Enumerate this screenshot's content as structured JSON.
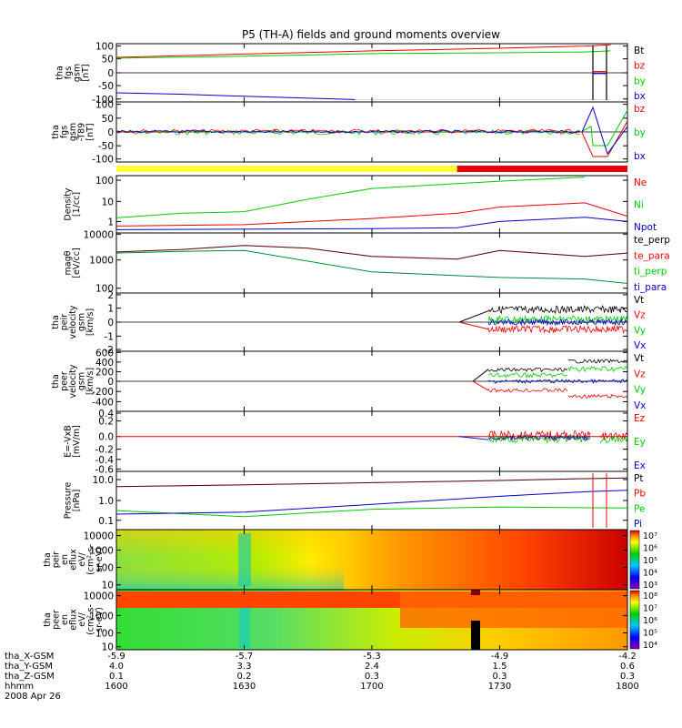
{
  "title": "P5 (TH-A) fields and ground moments overview",
  "colors": {
    "black": "#000000",
    "red": "#ee0000",
    "green": "#00cc00",
    "blue": "#0000cc",
    "mode_slow": "#ffff33",
    "mode_fast": "#ee0000"
  },
  "panels": [
    {
      "id": "fgs",
      "ylabel": [
        "tha",
        "fgs",
        "gsm",
        "[nT]"
      ],
      "yticks": [
        "100",
        "50",
        "0",
        "-50",
        "-100"
      ],
      "legend": [
        {
          "text": "Bt",
          "color": "black"
        },
        {
          "text": "bz",
          "color": "red"
        },
        {
          "text": "by",
          "color": "green"
        },
        {
          "text": "bx",
          "color": "blue"
        }
      ]
    },
    {
      "id": "fgs_hp",
      "ylabel": [
        "tha",
        "fgs",
        "gsm",
        "-T89",
        "[nT]"
      ],
      "yticks": [
        "100",
        "50",
        "0",
        "-50",
        "-100"
      ],
      "legend": [
        {
          "text": "bz",
          "color": "red"
        },
        {
          "text": "by",
          "color": "green"
        },
        {
          "text": "bx",
          "color": "blue"
        }
      ]
    },
    {
      "id": "density",
      "ylabel": [
        "Density",
        "[1/cc]"
      ],
      "yticks": [
        "100",
        "10",
        "1"
      ],
      "legend": [
        {
          "text": "Ne",
          "color": "red"
        },
        {
          "text": "Ni",
          "color": "green"
        },
        {
          "text": "Npot",
          "color": "blue"
        }
      ]
    },
    {
      "id": "temp",
      "ylabel": [
        "magθ",
        "[eV/cc]"
      ],
      "yticks": [
        "10000",
        "1000",
        "100"
      ],
      "legend": [
        {
          "text": "te_perp",
          "color": "black"
        },
        {
          "text": "te_para",
          "color": "red"
        },
        {
          "text": "ti_perp",
          "color": "green"
        },
        {
          "text": "ti_para",
          "color": "blue"
        }
      ]
    },
    {
      "id": "peir_vel",
      "ylabel": [
        "tha",
        "peir",
        "velocity",
        "gsm",
        "[km/s]"
      ],
      "yticks": [
        "2",
        "1",
        "0",
        "-1",
        "-2"
      ],
      "legend": [
        {
          "text": "Vt",
          "color": "black"
        },
        {
          "text": "Vz",
          "color": "red"
        },
        {
          "text": "Vy",
          "color": "green"
        },
        {
          "text": "Vx",
          "color": "blue"
        }
      ]
    },
    {
      "id": "peer_vel",
      "ylabel": [
        "tha",
        "peer",
        "velocity",
        "gsm",
        "[km/s]"
      ],
      "yticks": [
        "600",
        "400",
        "200",
        "0",
        "-200",
        "-400"
      ],
      "legend": [
        {
          "text": "Vt",
          "color": "black"
        },
        {
          "text": "Vz",
          "color": "red"
        },
        {
          "text": "Vy",
          "color": "green"
        },
        {
          "text": "Vx",
          "color": "blue"
        }
      ]
    },
    {
      "id": "efield",
      "ylabel": [
        "E=-VxB",
        "[mV/m]"
      ],
      "yticks": [
        "0.4",
        "0.2",
        "0.0",
        "-0.2",
        "-0.4",
        "-0.6"
      ],
      "legend": [
        {
          "text": "Ez",
          "color": "red"
        },
        {
          "text": "Ey",
          "color": "green"
        },
        {
          "text": "Ex",
          "color": "blue"
        }
      ]
    },
    {
      "id": "pressure",
      "ylabel": [
        "Pressure",
        "[nPa]"
      ],
      "yticks": [
        "10.0",
        "1.0",
        "0.1"
      ],
      "legend": [
        {
          "text": "Pt",
          "color": "black"
        },
        {
          "text": "Pb",
          "color": "red"
        },
        {
          "text": "Pe",
          "color": "green"
        },
        {
          "text": "Pi",
          "color": "blue"
        }
      ]
    },
    {
      "id": "peir_spec",
      "ylabel": [
        "tha",
        "peir",
        "en",
        "eflux",
        "eV/",
        "(cm²-s-",
        "sr-eV)"
      ],
      "yticks": [
        "10000",
        "1000",
        "100",
        "10"
      ],
      "colorbar": [
        "10⁷",
        "10⁶",
        "10⁵",
        "10⁴",
        "10³"
      ]
    },
    {
      "id": "peer_spec",
      "ylabel": [
        "tha",
        "peer",
        "en",
        "eflux",
        "eV/",
        "(cm²-s-",
        "sr-eV)"
      ],
      "yticks": [
        "10000",
        "1000",
        "100",
        "10"
      ],
      "colorbar": [
        "10⁸",
        "10⁷",
        "10⁶",
        "10⁵",
        "10⁴"
      ]
    }
  ],
  "xaxis": {
    "row_labels": [
      "tha_X-GSM",
      "tha_Y-GSM",
      "tha_Z-GSM",
      "hhmm",
      "2008 Apr 26"
    ],
    "columns": [
      {
        "x": "-5.9",
        "y": "4.0",
        "z": "0.1",
        "hhmm": "1600"
      },
      {
        "x": "-5.7",
        "y": "3.3",
        "z": "0.2",
        "hhmm": "1630"
      },
      {
        "x": "-5.3",
        "y": "2.4",
        "z": "0.3",
        "hhmm": "1700"
      },
      {
        "x": "-4.9",
        "y": "1.5",
        "z": "0.3",
        "hhmm": "1730"
      },
      {
        "x": "-4.2",
        "y": "0.6",
        "z": "0.3",
        "hhmm": "1800"
      }
    ]
  },
  "chart_data": {
    "type": "line",
    "title": "P5 (TH-A) fields and ground moments overview",
    "x_unit": "hhmm",
    "x_range": [
      "1600",
      "1800"
    ],
    "date": "2008 Apr 26",
    "mode_bar": [
      {
        "from": "1600",
        "to": "1720",
        "mode": "slow",
        "color": "#ffff33"
      },
      {
        "from": "1720",
        "to": "1800",
        "mode": "fast",
        "color": "#ee0000"
      }
    ],
    "series": [
      {
        "panel": "fgs",
        "name": "bz",
        "t": [
          1600,
          1630,
          1700,
          1730,
          1750,
          1756
        ],
        "values": [
          58,
          70,
          82,
          92,
          100,
          105
        ]
      },
      {
        "panel": "fgs",
        "name": "by",
        "t": [
          1600,
          1630,
          1700,
          1730,
          1750,
          1756
        ],
        "values": [
          55,
          62,
          72,
          75,
          78,
          82
        ]
      },
      {
        "panel": "fgs",
        "name": "bx",
        "t": [
          1600,
          1615,
          1630,
          1645,
          1656
        ],
        "values": [
          -75,
          -80,
          -88,
          -95,
          -100
        ]
      },
      {
        "panel": "density",
        "name": "Ne",
        "t": [
          1600,
          1630,
          1700,
          1720,
          1730,
          1750,
          1800
        ],
        "values": [
          0.6,
          0.7,
          1.4,
          2.5,
          5,
          8,
          1.8
        ]
      },
      {
        "panel": "density",
        "name": "Ni",
        "t": [
          1600,
          1615,
          1630,
          1645,
          1700,
          1730,
          1750
        ],
        "values": [
          1.5,
          2.5,
          3,
          12,
          40,
          90,
          140
        ]
      },
      {
        "panel": "density",
        "name": "Npot",
        "t": [
          1600,
          1700,
          1720,
          1730,
          1750,
          1800
        ],
        "values": [
          0.4,
          0.45,
          0.5,
          1.0,
          1.6,
          1.0
        ]
      },
      {
        "panel": "temp",
        "name": "te_perp",
        "t": [
          1600,
          1615,
          1630,
          1645,
          1700,
          1720,
          1730,
          1750,
          1800
        ],
        "values": [
          2200,
          2700,
          3800,
          3000,
          1500,
          1200,
          2500,
          1500,
          2000
        ]
      },
      {
        "panel": "temp",
        "name": "ti_perp",
        "t": [
          1600,
          1615,
          1630,
          1645,
          1700,
          1730,
          1750,
          1800
        ],
        "values": [
          2000,
          2300,
          2500,
          1000,
          400,
          250,
          220,
          150
        ]
      },
      {
        "panel": "pressure",
        "name": "Pt",
        "t": [
          1600,
          1630,
          1700,
          1730,
          1750,
          1800
        ],
        "values": [
          4.5,
          5.5,
          7,
          9,
          11,
          12
        ]
      },
      {
        "panel": "pressure",
        "name": "Pi",
        "t": [
          1600,
          1630,
          1700,
          1730,
          1750,
          1800
        ],
        "values": [
          0.2,
          0.25,
          0.6,
          1.5,
          2.5,
          3
        ]
      },
      {
        "panel": "pressure",
        "name": "Pe",
        "t": [
          1600,
          1630,
          1700,
          1730,
          1800
        ],
        "values": [
          0.3,
          0.15,
          0.35,
          0.45,
          0.4
        ]
      }
    ]
  }
}
